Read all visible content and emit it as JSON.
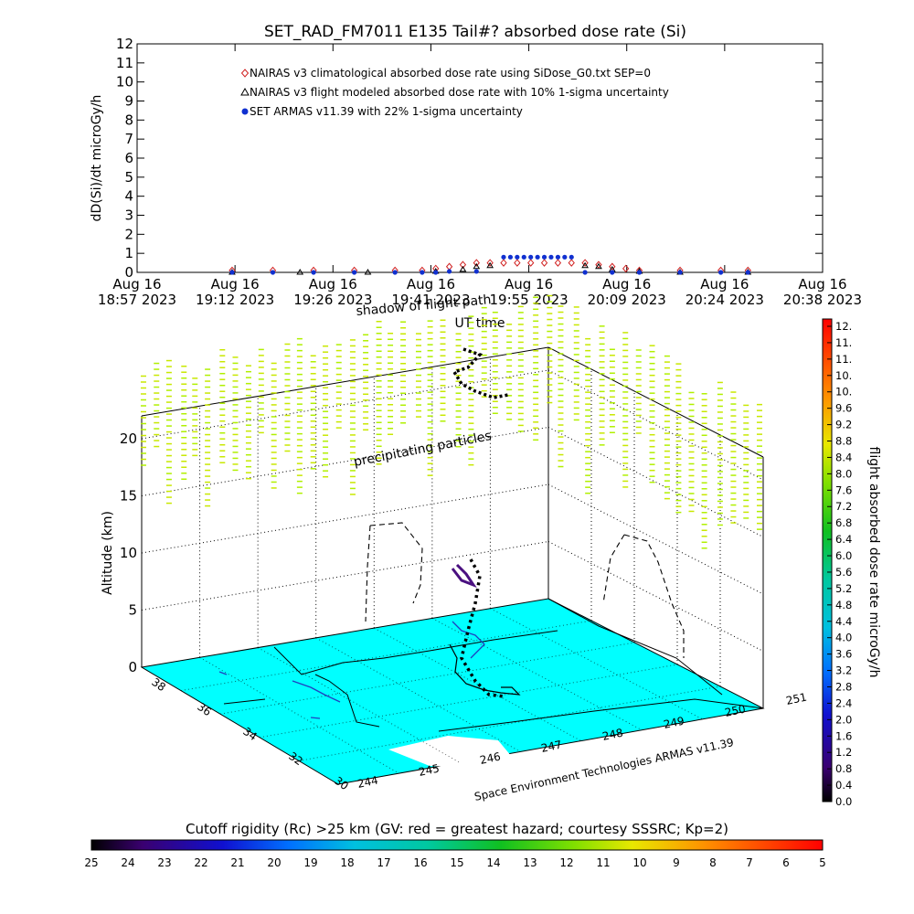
{
  "chart_data": [
    {
      "type": "scatter",
      "title": "SET_RAD_FM7011  E135 Tail#? absorbed dose rate (Si)",
      "ylabel": "dD(Si)/dt microGy/h",
      "xlabel": "UT time",
      "ylim": [
        0,
        12
      ],
      "y_ticks": [
        "0",
        "1",
        "2",
        "3",
        "4",
        "5",
        "6",
        "7",
        "8",
        "9",
        "10",
        "11",
        "12"
      ],
      "x_ticks": [
        {
          "top": "Aug 16",
          "bottom": "18:57 2023"
        },
        {
          "top": "Aug 16",
          "bottom": "19:12 2023"
        },
        {
          "top": "Aug 16",
          "bottom": "19:26 2023"
        },
        {
          "top": "Aug 16",
          "bottom": "19:41 2023"
        },
        {
          "top": "Aug 16",
          "bottom": "19:55 2023"
        },
        {
          "top": "Aug 16",
          "bottom": "20:09 2023"
        },
        {
          "top": "Aug 16",
          "bottom": "20:24 2023"
        },
        {
          "top": "Aug 16",
          "bottom": "20:38 2023"
        }
      ],
      "x_range_minutes": [
        0,
        101
      ],
      "legend": [
        {
          "label": "NAIRAS v3 climatological absorbed dose rate using SiDose_G0.txt SEP=0",
          "marker": "diamond",
          "color": "#d02020"
        },
        {
          "label": "NAIRAS v3 flight modeled absorbed dose rate with 10% 1-sigma uncertainty",
          "marker": "triangle",
          "color": "#000000"
        },
        {
          "label": "SET ARMAS v11.39 with 22% 1-sigma uncertainty",
          "marker": "dot",
          "color": "#1030d0"
        }
      ],
      "series": [
        {
          "name": "NAIRAS v3 climatological absorbed dose rate using SiDose_G0.txt SEP=0",
          "points": [
            [
              14,
              0.1
            ],
            [
              20,
              0.1
            ],
            [
              26,
              0.1
            ],
            [
              32,
              0.1
            ],
            [
              38,
              0.1
            ],
            [
              42,
              0.1
            ],
            [
              44,
              0.2
            ],
            [
              46,
              0.3
            ],
            [
              48,
              0.4
            ],
            [
              50,
              0.5
            ],
            [
              52,
              0.5
            ],
            [
              54,
              0.5
            ],
            [
              56,
              0.5
            ],
            [
              58,
              0.5
            ],
            [
              60,
              0.5
            ],
            [
              62,
              0.5
            ],
            [
              64,
              0.5
            ],
            [
              66,
              0.5
            ],
            [
              68,
              0.4
            ],
            [
              70,
              0.3
            ],
            [
              72,
              0.2
            ],
            [
              74,
              0.1
            ],
            [
              80,
              0.1
            ],
            [
              86,
              0.1
            ],
            [
              90,
              0.1
            ]
          ]
        },
        {
          "name": "NAIRAS v3 flight modeled absorbed dose rate with 10% 1-sigma uncertainty",
          "points": [
            [
              14,
              0.0
            ],
            [
              24,
              0.0
            ],
            [
              34,
              0.0
            ],
            [
              44,
              0.05
            ],
            [
              48,
              0.15
            ],
            [
              50,
              0.3
            ],
            [
              52,
              0.35
            ],
            [
              66,
              0.35
            ],
            [
              68,
              0.3
            ],
            [
              70,
              0.15
            ],
            [
              74,
              0.05
            ],
            [
              80,
              0.0
            ],
            [
              90,
              0.0
            ]
          ]
        },
        {
          "name": "SET ARMAS v11.39 with 22% 1-sigma uncertainty",
          "points": [
            [
              14,
              0.0
            ],
            [
              20,
              0.0
            ],
            [
              26,
              0.0
            ],
            [
              32,
              0.0
            ],
            [
              38,
              0.0
            ],
            [
              42,
              0.0
            ],
            [
              44,
              0.0
            ],
            [
              46,
              0.05
            ],
            [
              50,
              0.05
            ],
            [
              54,
              0.8
            ],
            [
              55,
              0.8
            ],
            [
              56,
              0.8
            ],
            [
              57,
              0.8
            ],
            [
              58,
              0.8
            ],
            [
              59,
              0.8
            ],
            [
              60,
              0.8
            ],
            [
              61,
              0.8
            ],
            [
              62,
              0.8
            ],
            [
              63,
              0.8
            ],
            [
              64,
              0.8
            ],
            [
              66,
              0.0
            ],
            [
              70,
              0.0
            ],
            [
              74,
              0.0
            ],
            [
              80,
              0.0
            ],
            [
              86,
              0.0
            ],
            [
              90,
              0.0
            ]
          ]
        }
      ]
    },
    {
      "type": "scatter",
      "title": "",
      "zlabel": "Altitude (km)",
      "z_ticks": [
        "0",
        "5",
        "10",
        "15",
        "20"
      ],
      "zlim": [
        0,
        22
      ],
      "lat_ticks": [
        "38",
        "36",
        "34",
        "32",
        "30"
      ],
      "lon_ticks": [
        "244",
        "245",
        "246",
        "247",
        "248",
        "249",
        "250",
        "251"
      ],
      "annotations": [
        "precipitating particles",
        "shadow of flight path",
        "Space Environment Technologies ARMAS v11.39"
      ],
      "colorbar": {
        "label": "flight absorbed dose rate microGy/h",
        "ticks": [
          "0.0",
          "0.4",
          "0.8",
          "1.2",
          "1.6",
          "2.0",
          "2.4",
          "2.8",
          "3.2",
          "3.6",
          "4.0",
          "4.4",
          "4.8",
          "5.2",
          "5.6",
          "6.0",
          "6.4",
          "6.8",
          "7.2",
          "7.6",
          "8.0",
          "8.4",
          "8.8",
          "9.2",
          "9.6",
          "10.",
          "10.",
          "11.",
          "11.",
          "12."
        ]
      },
      "bottom_colorbar": {
        "label": "Cutoff rigidity (Rc) >25 km (GV: red = greatest hazard; courtesy SSSRC; Kp=2)",
        "ticks": [
          "25",
          "24",
          "23",
          "22",
          "21",
          "20",
          "19",
          "18",
          "17",
          "16",
          "15",
          "14",
          "13",
          "12",
          "11",
          "10",
          "9",
          "8",
          "7",
          "6",
          "5"
        ]
      },
      "surface_color": "#00ffff",
      "particle_color": "#c8f000"
    }
  ],
  "labels": {
    "title": "SET_RAD_FM7011  E135 Tail#? absorbed dose rate (Si)",
    "ylabel": "dD(Si)/dt microGy/h",
    "xlabel": "UT time",
    "zlabel": "Altitude (km)",
    "precip": "precipitating particles",
    "shadow": "shadow of flight path",
    "credit": "Space Environment Technologies ARMAS v11.39",
    "cb_right": "flight absorbed dose rate microGy/h",
    "cb_bottom": "Cutoff rigidity (Rc) >25 km (GV: red = greatest hazard; courtesy SSSRC; Kp=2)"
  }
}
